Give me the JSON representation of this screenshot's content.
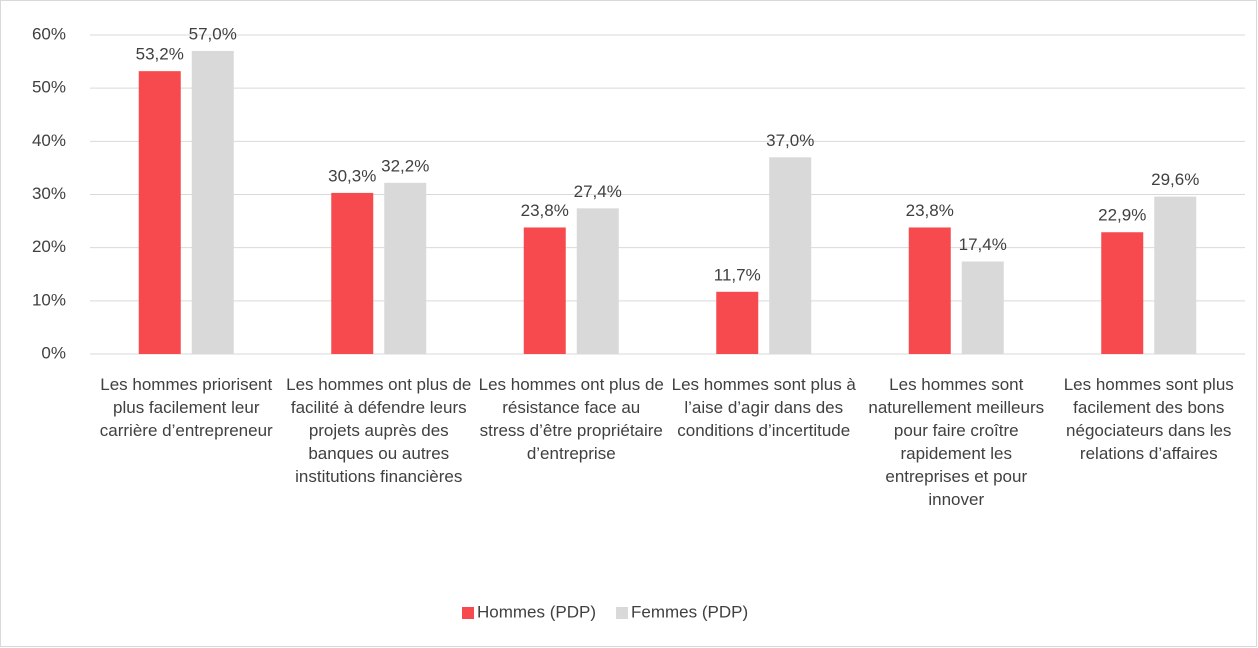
{
  "chart_data": {
    "type": "bar",
    "categories": [
      "Les hommes priorisent plus facilement leur carrière d’entrepreneur",
      "Les hommes ont plus de facilité à défendre leurs projets auprès des banques ou autres institutions financières",
      "Les hommes ont plus de résistance face au stress d’être propriétaire d’entreprise",
      "Les hommes sont plus à l’aise d’agir dans des conditions d’incertitude",
      "Les hommes sont naturellement meilleurs pour faire croître rapidement les entreprises et pour innover",
      "Les hommes sont plus facilement des bons négociateurs dans les relations d’affaires"
    ],
    "series": [
      {
        "name": "Hommes (PDP)",
        "color": "#f64a4f",
        "values": [
          53.2,
          30.3,
          23.8,
          11.7,
          23.8,
          22.9
        ],
        "value_labels": [
          "53,2%",
          "30,3%",
          "23,8%",
          "11,7%",
          "23,8%",
          "22,9%"
        ]
      },
      {
        "name": "Femmes (PDP)",
        "color": "#d9d9d9",
        "values": [
          57.0,
          32.2,
          27.4,
          37.0,
          17.4,
          29.6
        ],
        "value_labels": [
          "57,0%",
          "32,2%",
          "27,4%",
          "37,0%",
          "17,4%",
          "29,6%"
        ]
      }
    ],
    "ylim": [
      0,
      60
    ],
    "yticks": [
      {
        "value": 0,
        "label": "0%"
      },
      {
        "value": 10,
        "label": "10%"
      },
      {
        "value": 20,
        "label": "20%"
      },
      {
        "value": 30,
        "label": "30%"
      },
      {
        "value": 40,
        "label": "40%"
      },
      {
        "value": 50,
        "label": "50%"
      },
      {
        "value": 60,
        "label": "60%"
      }
    ],
    "grid": true,
    "legend": "bottom"
  }
}
